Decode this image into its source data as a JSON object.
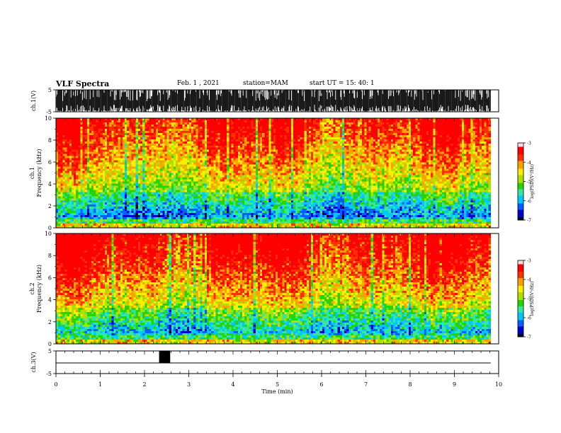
{
  "header": {
    "title": "VLF Spectra",
    "date": "Feb. 1 , 2021",
    "station": "station=MAM",
    "start": "start UT =  15: 40: 1"
  },
  "colormap": [
    "#000000",
    "#0000c8",
    "#0060ff",
    "#00c8ff",
    "#30e8a0",
    "#28d400",
    "#b0e000",
    "#ffee00",
    "#ffa000",
    "#ff3000",
    "#ff0000",
    "#ffdcdc"
  ],
  "chart_data": [
    {
      "type": "line",
      "panel": "ch1-waveform",
      "ylabel": "ch.1(V)",
      "ylim": [
        -5,
        5
      ],
      "yticks": [
        "5",
        "-5"
      ],
      "xlim": [
        0,
        10
      ]
    },
    {
      "type": "heatmap",
      "panel": "ch1-spectrogram",
      "ylabel_top": "ch.1",
      "ylabel": "Frequency (kHz)",
      "ylim": [
        0,
        10
      ],
      "yticks": [
        "0",
        "2",
        "4",
        "6",
        "8",
        "10"
      ],
      "xlim": [
        0,
        10
      ],
      "data_extent_x": [
        0,
        9.82
      ],
      "colorbar": {
        "label": "log(PSD)(V²/Hz)",
        "range": [
          -7,
          -3
        ],
        "ticks": [
          "-3",
          "-4",
          "-5",
          "-6",
          "-7"
        ]
      }
    },
    {
      "type": "heatmap",
      "panel": "ch2-spectrogram",
      "ylabel_top": "ch.2",
      "ylabel": "Frequency (kHz)",
      "ylim": [
        0,
        10
      ],
      "yticks": [
        "0",
        "2",
        "4",
        "6",
        "8",
        "10"
      ],
      "xlim": [
        0,
        10
      ],
      "data_extent_x": [
        0,
        9.82
      ],
      "colorbar": {
        "label": "log(PSD)(V²/Hz)",
        "range": [
          -7,
          -3
        ],
        "ticks": [
          "-3",
          "-4",
          "-5",
          "-6",
          "-7"
        ]
      }
    },
    {
      "type": "line",
      "panel": "ch3-waveform",
      "ylabel": "ch.3(V)",
      "ylim": [
        -5,
        5
      ],
      "yticks": [
        "5",
        "-5"
      ],
      "xlim": [
        0,
        10
      ],
      "xlabel": "Time (min)",
      "xticks": [
        "0",
        "1",
        "2",
        "3",
        "4",
        "5",
        "6",
        "7",
        "8",
        "9",
        "10"
      ],
      "pulse": {
        "x_start": 2.33,
        "x_end": 2.58,
        "level": 5
      }
    }
  ]
}
